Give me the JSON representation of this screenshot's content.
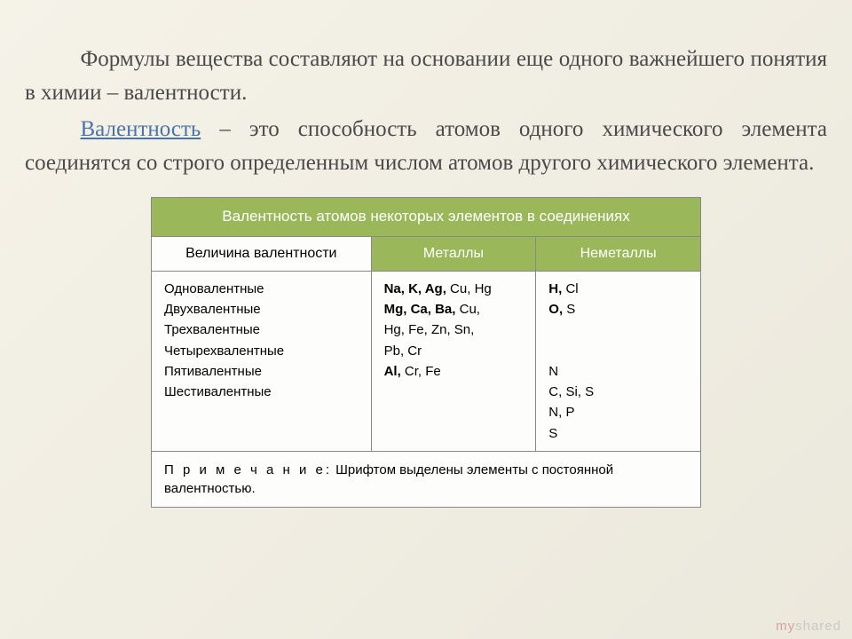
{
  "paragraph1": "Формулы вещества составляют на основании еще одного важнейшего понятия в химии – валентности.",
  "term": "Валентность",
  "paragraph2_rest": " – это способность атомов одного химического элемента соединятся со строго определенным числом атомов другого химического элемента.",
  "table": {
    "title": "Валентность атомов некоторых элементов в соединениях",
    "headers": {
      "col1": "Величина валентности",
      "col2": "Металлы",
      "col3": "Неметаллы"
    },
    "valence_labels": [
      "Одновалентные",
      "Двухвалентные",
      "Трехвалентные",
      "Четырехвалентные",
      "Пятивалентные",
      "Шестивалентные"
    ],
    "metals_lines": [
      "<b>Na, K, Ag,</b> Cu, Hg",
      "<b>Mg, Ca, Ba,</b> Cu,",
      "Hg, Fe, Zn, Sn,",
      "Pb, Cr",
      "<b>Al,</b> Cr, Fe",
      "",
      "",
      ""
    ],
    "nonmetals_lines": [
      "<b>H,</b> Cl",
      "<b>O,</b> S",
      "",
      "",
      "N",
      "C, Si, S",
      "N, P",
      "S"
    ],
    "note_label": "П р и м е ч а н и е:",
    "note_text": " Шрифтом выделены элементы с постоянной валентностью."
  },
  "watermark": {
    "my": "my",
    "shared": "shared"
  },
  "colors": {
    "term": "#4a74a8",
    "header_bg": "#9ab85a",
    "text": "#4a4a4a",
    "border": "#888888",
    "bg_light": "#f5f2e8"
  }
}
